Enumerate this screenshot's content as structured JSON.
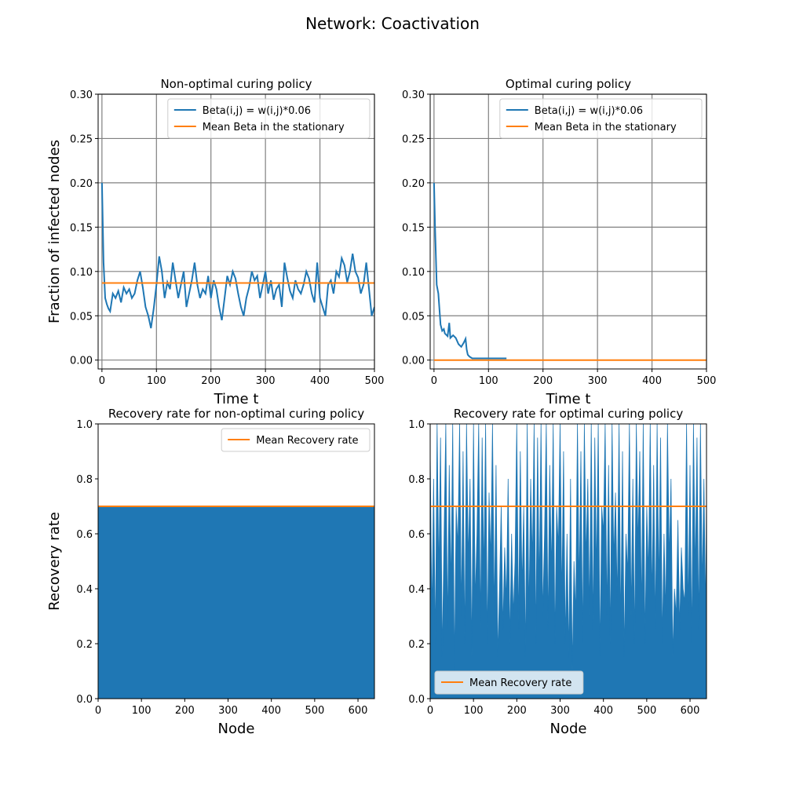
{
  "figure": {
    "suptitle": "Network: Coactivation"
  },
  "colors": {
    "series": "#1f77b4",
    "mean": "#ff7f0e",
    "grid": "#808080",
    "axis": "#000000"
  },
  "chart_data": [
    {
      "type": "line",
      "title": "Non-optimal curing policy",
      "xlabel": "Time t",
      "ylabel": "Fraction of infected nodes",
      "xlim": [
        -7,
        500
      ],
      "ylim": [
        -0.01,
        0.3
      ],
      "xticks": [
        0,
        100,
        200,
        300,
        400,
        500
      ],
      "yticks": [
        "0.00",
        "0.05",
        "0.10",
        "0.15",
        "0.20",
        "0.25",
        "0.30"
      ],
      "grid": true,
      "legend_position": "upper right",
      "series": [
        {
          "name": "Beta(i,j) = w(i,j)*0.06",
          "x": [
            0,
            3,
            6,
            9,
            12,
            15,
            20,
            25,
            30,
            35,
            40,
            45,
            50,
            55,
            60,
            65,
            70,
            75,
            80,
            85,
            90,
            95,
            100,
            105,
            110,
            115,
            120,
            125,
            130,
            135,
            140,
            145,
            150,
            155,
            160,
            165,
            170,
            175,
            180,
            185,
            190,
            195,
            200,
            205,
            210,
            215,
            220,
            225,
            230,
            235,
            240,
            245,
            250,
            255,
            260,
            265,
            270,
            275,
            280,
            285,
            290,
            295,
            300,
            305,
            310,
            315,
            320,
            325,
            330,
            335,
            340,
            345,
            350,
            355,
            360,
            365,
            370,
            375,
            380,
            385,
            390,
            395,
            400,
            405,
            410,
            415,
            420,
            425,
            430,
            435,
            440,
            445,
            450,
            455,
            460,
            465,
            470,
            475,
            480,
            485,
            490,
            495,
            500
          ],
          "y": [
            0.2,
            0.11,
            0.07,
            0.063,
            0.058,
            0.055,
            0.075,
            0.07,
            0.078,
            0.065,
            0.082,
            0.075,
            0.08,
            0.07,
            0.075,
            0.09,
            0.1,
            0.082,
            0.06,
            0.05,
            0.036,
            0.058,
            0.085,
            0.117,
            0.1,
            0.07,
            0.088,
            0.08,
            0.11,
            0.09,
            0.07,
            0.085,
            0.1,
            0.06,
            0.075,
            0.09,
            0.11,
            0.085,
            0.07,
            0.08,
            0.075,
            0.095,
            0.07,
            0.09,
            0.08,
            0.06,
            0.045,
            0.07,
            0.095,
            0.085,
            0.1,
            0.092,
            0.075,
            0.06,
            0.05,
            0.07,
            0.082,
            0.1,
            0.09,
            0.095,
            0.07,
            0.085,
            0.1,
            0.075,
            0.09,
            0.068,
            0.08,
            0.085,
            0.06,
            0.11,
            0.093,
            0.078,
            0.07,
            0.09,
            0.08,
            0.075,
            0.085,
            0.1,
            0.092,
            0.075,
            0.065,
            0.11,
            0.07,
            0.06,
            0.05,
            0.085,
            0.09,
            0.075,
            0.1,
            0.094,
            0.115,
            0.107,
            0.088,
            0.1,
            0.12,
            0.1,
            0.093,
            0.075,
            0.085,
            0.11,
            0.08,
            0.05,
            0.06
          ]
        },
        {
          "name": "Mean Beta in the stationary",
          "x": [
            0,
            500
          ],
          "y": [
            0.087,
            0.087
          ]
        }
      ]
    },
    {
      "type": "line",
      "title": "Optimal curing policy",
      "xlabel": "Time t",
      "ylabel": "",
      "xlim": [
        -7,
        500
      ],
      "ylim": [
        -0.01,
        0.3
      ],
      "xticks": [
        0,
        100,
        200,
        300,
        400,
        500
      ],
      "yticks": [
        "0.00",
        "0.05",
        "0.10",
        "0.15",
        "0.20",
        "0.25",
        "0.30"
      ],
      "grid": true,
      "legend_position": "upper right",
      "series": [
        {
          "name": "Beta(i,j) = w(i,j)*0.06",
          "x": [
            0,
            2,
            5,
            8,
            12,
            15,
            18,
            20,
            25,
            28,
            30,
            35,
            40,
            45,
            50,
            55,
            58,
            60,
            62,
            65,
            70,
            80,
            100,
            133
          ],
          "y": [
            0.2,
            0.15,
            0.085,
            0.075,
            0.04,
            0.033,
            0.035,
            0.03,
            0.027,
            0.042,
            0.025,
            0.028,
            0.025,
            0.018,
            0.015,
            0.02,
            0.024,
            0.012,
            0.006,
            0.004,
            0.002,
            0.002,
            0.002,
            0.002
          ]
        },
        {
          "name": "Mean Beta in the stationary",
          "x": [
            0,
            500
          ],
          "y": [
            0.0,
            0.0
          ]
        }
      ]
    },
    {
      "type": "area",
      "title": "Recovery rate for non-optimal curing policy",
      "xlabel": "Node",
      "ylabel": "Recovery rate",
      "xlim": [
        0,
        638
      ],
      "ylim": [
        0,
        1.0
      ],
      "xticks": [
        0,
        100,
        200,
        300,
        400,
        500,
        600
      ],
      "yticks": [
        "0.0",
        "0.2",
        "0.4",
        "0.6",
        "0.8",
        "1.0"
      ],
      "grid": false,
      "legend_position": "upper right",
      "series": [
        {
          "name": "",
          "x": [
            0,
            638
          ],
          "y": [
            0.7,
            0.7
          ]
        },
        {
          "name": "Mean Recovery rate",
          "x": [
            0,
            638
          ],
          "y": [
            0.7,
            0.7
          ]
        }
      ]
    },
    {
      "type": "area",
      "title": "Recovery rate for optimal curing policy",
      "xlabel": "Node",
      "ylabel": "",
      "xlim": [
        0,
        638
      ],
      "ylim": [
        0,
        1.0
      ],
      "xticks": [
        0,
        100,
        200,
        300,
        400,
        500,
        600
      ],
      "yticks": [
        "0.0",
        "0.2",
        "0.4",
        "0.6",
        "0.8",
        "1.0"
      ],
      "grid": false,
      "legend_position": "lower left",
      "series": [
        {
          "name": "",
          "x": [
            0,
            4,
            8,
            12,
            16,
            20,
            24,
            28,
            32,
            36,
            40,
            44,
            48,
            52,
            56,
            60,
            64,
            68,
            72,
            76,
            80,
            84,
            88,
            92,
            96,
            100,
            104,
            108,
            112,
            116,
            120,
            124,
            128,
            132,
            136,
            140,
            144,
            148,
            152,
            156,
            160,
            164,
            168,
            172,
            176,
            180,
            184,
            188,
            192,
            196,
            200,
            204,
            208,
            212,
            216,
            220,
            224,
            228,
            232,
            236,
            240,
            244,
            248,
            252,
            256,
            260,
            264,
            268,
            272,
            276,
            280,
            284,
            288,
            292,
            296,
            300,
            304,
            308,
            312,
            316,
            320,
            324,
            328,
            332,
            336,
            340,
            344,
            348,
            352,
            356,
            360,
            364,
            368,
            372,
            376,
            380,
            384,
            388,
            392,
            396,
            400,
            404,
            408,
            412,
            416,
            420,
            424,
            428,
            432,
            436,
            440,
            444,
            448,
            452,
            456,
            460,
            464,
            468,
            472,
            476,
            480,
            484,
            488,
            492,
            496,
            500,
            504,
            508,
            512,
            516,
            520,
            524,
            528,
            532,
            536,
            540,
            544,
            548,
            552,
            556,
            560,
            564,
            568,
            572,
            576,
            580,
            584,
            588,
            592,
            596,
            600,
            604,
            608,
            612,
            616,
            620,
            624,
            628,
            632,
            636,
            638
          ],
          "y": [
            0.9,
            0.3,
            0.8,
            0.2,
            1.0,
            0.45,
            0.95,
            0.15,
            0.6,
            1.0,
            0.25,
            0.85,
            0.4,
            1.0,
            0.1,
            0.7,
            0.55,
            1.0,
            0.3,
            0.9,
            0.2,
            1.0,
            0.5,
            0.8,
            0.15,
            1.0,
            0.35,
            0.6,
            1.0,
            0.25,
            0.95,
            0.45,
            1.0,
            0.2,
            0.75,
            0.5,
            1.0,
            0.3,
            0.85,
            0.15,
            0.4,
            0.7,
            0.25,
            0.55,
            0.35,
            0.8,
            0.2,
            0.6,
            0.3,
            0.5,
            1.0,
            0.25,
            0.9,
            0.4,
            0.7,
            0.15,
            1.0,
            0.3,
            0.8,
            0.5,
            1.0,
            0.2,
            0.95,
            0.4,
            1.0,
            0.3,
            0.6,
            1.0,
            0.25,
            0.85,
            0.45,
            1.0,
            0.2,
            0.7,
            0.55,
            1.0,
            0.35,
            0.9,
            0.2,
            0.6,
            0.15,
            0.8,
            0.1,
            0.5,
            0.3,
            1.0,
            0.4,
            0.9,
            0.2,
            1.0,
            0.5,
            0.8,
            0.3,
            1.0,
            0.25,
            0.95,
            0.45,
            1.0,
            0.15,
            0.7,
            0.6,
            1.0,
            0.3,
            0.85,
            0.2,
            1.0,
            0.5,
            0.75,
            0.35,
            1.0,
            0.25,
            0.9,
            0.15,
            0.6,
            0.45,
            1.0,
            0.3,
            0.8,
            0.2,
            1.0,
            0.55,
            0.9,
            0.3,
            1.0,
            0.2,
            0.7,
            0.45,
            1.0,
            0.35,
            0.85,
            0.25,
            1.0,
            0.4,
            0.95,
            0.2,
            0.6,
            0.3,
            1.0,
            0.5,
            0.8,
            0.15,
            0.4,
            0.3,
            0.65,
            0.25,
            0.55,
            0.4,
            0.35,
            1.0,
            0.3,
            0.85,
            0.2,
            1.0,
            0.45,
            0.95,
            0.25,
            1.0,
            0.4,
            0.8,
            0.3,
            0.75
          ]
        },
        {
          "name": "Mean Recovery rate",
          "x": [
            0,
            638
          ],
          "y": [
            0.7,
            0.7
          ]
        }
      ]
    }
  ]
}
